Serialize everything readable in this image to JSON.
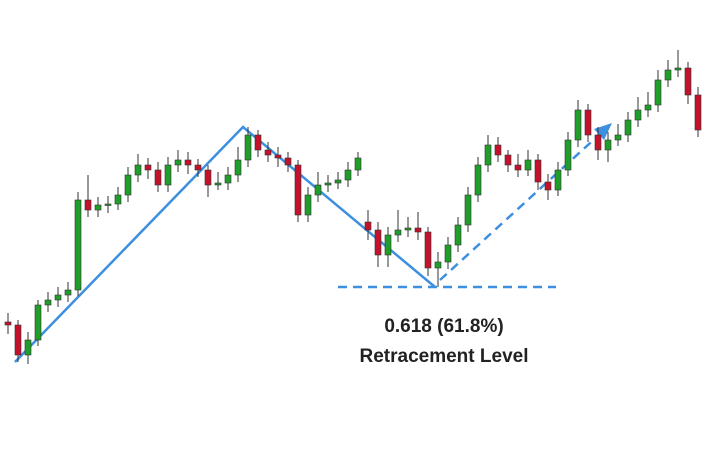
{
  "chart_data": {
    "type": "candlestick",
    "annotations": [
      "0.618 (61.8%)",
      "Retracement Level"
    ],
    "up_color": "#1f9e2a",
    "down_color": "#c4122c",
    "ylim": [
      0,
      472
    ],
    "open": [
      150,
      147,
      117,
      132,
      167,
      172,
      177,
      182,
      272,
      262,
      267,
      268,
      277,
      297,
      307,
      302,
      287,
      307,
      312,
      307,
      302,
      287,
      289,
      297,
      312,
      337,
      322,
      317,
      314,
      307,
      257,
      277,
      287,
      289,
      292,
      302,
      250,
      242,
      217,
      237,
      242,
      244,
      240,
      204,
      210,
      227,
      247,
      277,
      307,
      327,
      317,
      307,
      302,
      312,
      290,
      282,
      302,
      332,
      362,
      337,
      322,
      332,
      337,
      352,
      362,
      367,
      392,
      402,
      404,
      377
    ],
    "high": [
      159,
      152,
      140,
      172,
      180,
      185,
      190,
      280,
      297,
      275,
      276,
      285,
      305,
      318,
      314,
      310,
      315,
      322,
      320,
      313,
      307,
      300,
      305,
      325,
      345,
      342,
      330,
      325,
      320,
      312,
      285,
      300,
      297,
      300,
      310,
      320,
      262,
      250,
      245,
      262,
      255,
      260,
      245,
      220,
      235,
      255,
      285,
      315,
      337,
      335,
      322,
      318,
      322,
      318,
      298,
      310,
      340,
      372,
      368,
      345,
      340,
      348,
      360,
      375,
      380,
      402,
      412,
      422,
      410,
      385
    ],
    "low": [
      138,
      110,
      108,
      126,
      160,
      165,
      170,
      176,
      255,
      255,
      259,
      262,
      270,
      290,
      293,
      280,
      280,
      300,
      298,
      295,
      275,
      282,
      282,
      290,
      305,
      315,
      310,
      305,
      300,
      250,
      250,
      270,
      280,
      283,
      285,
      296,
      232,
      205,
      205,
      230,
      235,
      232,
      196,
      185,
      203,
      220,
      240,
      270,
      300,
      310,
      300,
      295,
      296,
      282,
      272,
      276,
      296,
      325,
      330,
      312,
      310,
      326,
      330,
      345,
      355,
      360,
      385,
      395,
      368,
      335
    ],
    "close": [
      147,
      117,
      132,
      167,
      172,
      177,
      182,
      272,
      262,
      267,
      268,
      277,
      297,
      307,
      302,
      287,
      307,
      312,
      307,
      302,
      287,
      289,
      297,
      312,
      337,
      322,
      317,
      314,
      307,
      257,
      277,
      287,
      289,
      292,
      302,
      314,
      242,
      217,
      237,
      242,
      244,
      240,
      204,
      210,
      227,
      247,
      277,
      307,
      327,
      317,
      307,
      302,
      312,
      290,
      282,
      302,
      332,
      362,
      337,
      322,
      332,
      337,
      352,
      362,
      367,
      392,
      402,
      404,
      377,
      342
    ]
  }
}
